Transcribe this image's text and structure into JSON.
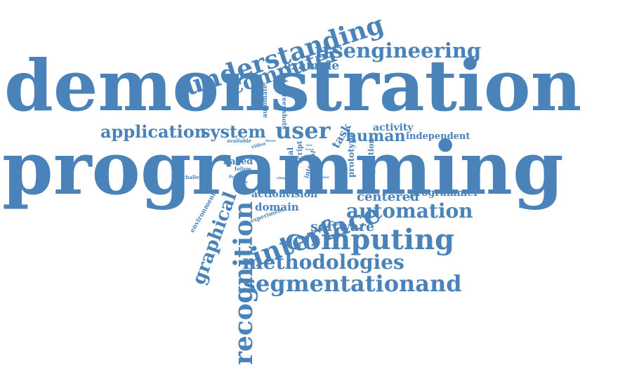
{
  "words": [
    {
      "text": "demonstration",
      "size": 100,
      "rotate": 0
    },
    {
      "text": "programming",
      "size": 104,
      "rotate": 0
    },
    {
      "text": "understanding",
      "size": 36,
      "rotate": -18
    },
    {
      "text": "computer",
      "size": 30,
      "rotate": -18
    },
    {
      "text": "itsengineering",
      "size": 29,
      "rotate": 0
    },
    {
      "text": "example",
      "size": 17,
      "rotate": 0
    },
    {
      "text": "automate",
      "size": 9,
      "rotate": -90
    },
    {
      "text": "screenshots",
      "size": 9,
      "rotate": 90
    },
    {
      "text": "application",
      "size": 24,
      "rotate": 0
    },
    {
      "text": "system",
      "size": 24,
      "rotate": 0
    },
    {
      "text": "user",
      "size": 32,
      "rotate": 0
    },
    {
      "text": "task",
      "size": 16,
      "rotate": -60
    },
    {
      "text": "human",
      "size": 22,
      "rotate": 0
    },
    {
      "text": "activity",
      "size": 14,
      "rotate": 0
    },
    {
      "text": "independent",
      "size": 13,
      "rotate": 0
    },
    {
      "text": "available",
      "size": 7,
      "rotate": 0
    },
    {
      "text": "video",
      "size": 7,
      "rotate": -15
    },
    {
      "text": "three",
      "size": 5,
      "rotate": 0
    },
    {
      "text": "based",
      "size": 13,
      "rotate": 0
    },
    {
      "text": "follow",
      "size": 7,
      "rotate": 0
    },
    {
      "text": "challenge",
      "size": 7,
      "rotate": 0
    },
    {
      "text": "problem",
      "size": 6,
      "rotate": 20
    },
    {
      "text": "visual",
      "size": 11,
      "rotate": -90
    },
    {
      "text": "simple",
      "size": 5,
      "rotate": 0
    },
    {
      "text": "script",
      "size": 10,
      "rotate": -90
    },
    {
      "text": "internal",
      "size": 9,
      "rotate": -75
    },
    {
      "text": "machine",
      "size": 5,
      "rotate": 0
    },
    {
      "text": "prototype",
      "size": 12,
      "rotate": -90
    },
    {
      "text": "question",
      "size": 11,
      "rotate": -90
    },
    {
      "text": "fast",
      "size": 4,
      "rotate": 0
    },
    {
      "text": "learn",
      "size": 4,
      "rotate": 0
    },
    {
      "text": "action",
      "size": 14,
      "rotate": 0
    },
    {
      "text": "vision",
      "size": 14,
      "rotate": 0
    },
    {
      "text": "centered",
      "size": 18,
      "rotate": 0
    },
    {
      "text": "programmer",
      "size": 14,
      "rotate": 0
    },
    {
      "text": "domain",
      "size": 15,
      "rotate": 0
    },
    {
      "text": "experiment",
      "size": 8,
      "rotate": -20
    },
    {
      "text": "environment",
      "size": 9,
      "rotate": -60
    },
    {
      "text": "interface",
      "size": 38,
      "rotate": -20
    },
    {
      "text": "automation",
      "size": 28,
      "rotate": 0
    },
    {
      "text": "software",
      "size": 19,
      "rotate": 0
    },
    {
      "text": "graphical",
      "size": 26,
      "rotate": -70
    },
    {
      "text": "computing",
      "size": 40,
      "rotate": 0
    },
    {
      "text": "recognition",
      "size": 36,
      "rotate": -90
    },
    {
      "text": "methodologies",
      "size": 28,
      "rotate": 0
    },
    {
      "text": "segmentationand",
      "size": 32,
      "rotate": 0
    }
  ],
  "style": {
    "word_color": "#4a83b9",
    "background": "#ffffff"
  }
}
